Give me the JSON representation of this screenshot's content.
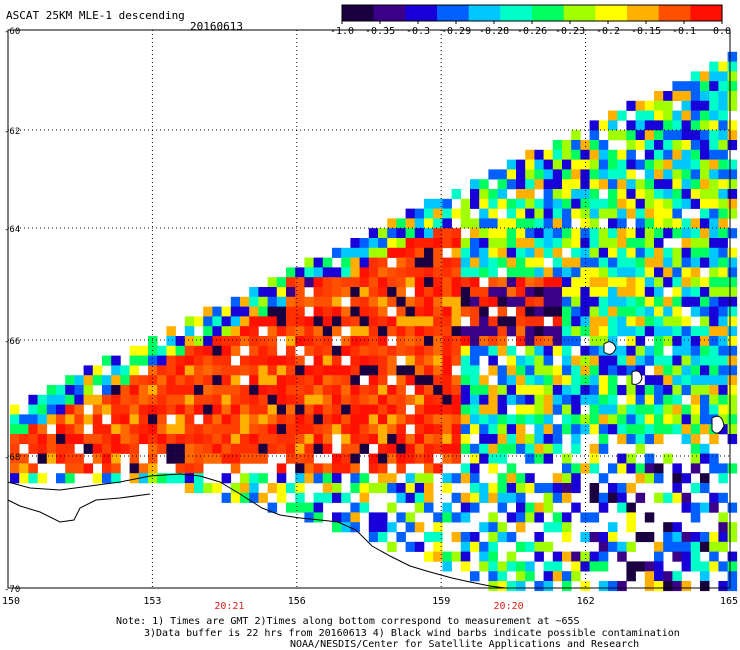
{
  "header": {
    "title": "ASCAT 25KM MLE-1 descending",
    "date": "20160613"
  },
  "colorbar": {
    "labels": [
      "-1.0",
      "-0.35",
      "-0.3",
      "-0.29",
      "-0.28",
      "-0.26",
      "-0.23",
      "-0.2",
      "-0.15",
      "-0.1",
      "0.0"
    ],
    "colors": [
      "#1a0040",
      "#3a0088",
      "#1800d8",
      "#0060ff",
      "#00c8ff",
      "#00ffc8",
      "#00ff60",
      "#a0ff00",
      "#ffff00",
      "#ffb000",
      "#ff5000",
      "#ff1000"
    ]
  },
  "map": {
    "lon_ticks": [
      "150",
      "153",
      "156",
      "159",
      "162",
      "165"
    ],
    "lat_ticks": [
      "-60",
      "-62",
      "-64",
      "-66",
      "-68",
      "-70"
    ],
    "time_labels": [
      {
        "text": "20:21",
        "lon": 154.6
      },
      {
        "text": "20:20",
        "lon": 160.4
      }
    ],
    "lon_range": [
      150,
      165
    ],
    "lat_range": [
      -60,
      -70
    ]
  },
  "notes": {
    "line1": "Note: 1) Times are GMT 2)Times along bottom correspond to measurement at ~65S",
    "line2": "3)Data buffer is 22 hrs from 20160613 4) Black wind barbs indicate possible contamination",
    "line3": "NOAA/NESDIS/Center for Satellite Applications and Research"
  }
}
